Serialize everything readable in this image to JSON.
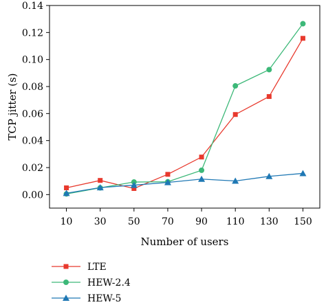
{
  "chart_data": {
    "type": "line",
    "title": "",
    "xlabel": "Number of users",
    "ylabel": "TCP jitter (s)",
    "x": [
      10,
      30,
      50,
      70,
      90,
      110,
      130,
      150
    ],
    "xticks": [
      "10",
      "30",
      "50",
      "70",
      "90",
      "110",
      "130",
      "150"
    ],
    "xlim": [
      0,
      160
    ],
    "ylim": [
      -0.01,
      0.14
    ],
    "yticks": [
      "0.00",
      "0.02",
      "0.04",
      "0.06",
      "0.08",
      "0.10",
      "0.12",
      "0.14"
    ],
    "ytick_values": [
      0.0,
      0.02,
      0.04,
      0.06,
      0.08,
      0.1,
      0.12,
      0.14
    ],
    "grid": false,
    "legend_position": "bottom-left, below plot",
    "series": [
      {
        "name": "LTE",
        "color": "#e8392d",
        "marker": "square",
        "values": [
          0.005,
          0.0105,
          0.0045,
          0.015,
          0.0278,
          0.0593,
          0.0726,
          0.1157
        ]
      },
      {
        "name": "HEW-2.4",
        "color": "#3cb878",
        "marker": "circle",
        "values": [
          0.0005,
          0.005,
          0.0093,
          0.0095,
          0.018,
          0.0805,
          0.0925,
          0.1265
        ]
      },
      {
        "name": "HEW-5",
        "color": "#1f78b4",
        "marker": "triangle",
        "values": [
          0.001,
          0.0052,
          0.007,
          0.009,
          0.0115,
          0.0101,
          0.0135,
          0.0157
        ]
      }
    ]
  }
}
